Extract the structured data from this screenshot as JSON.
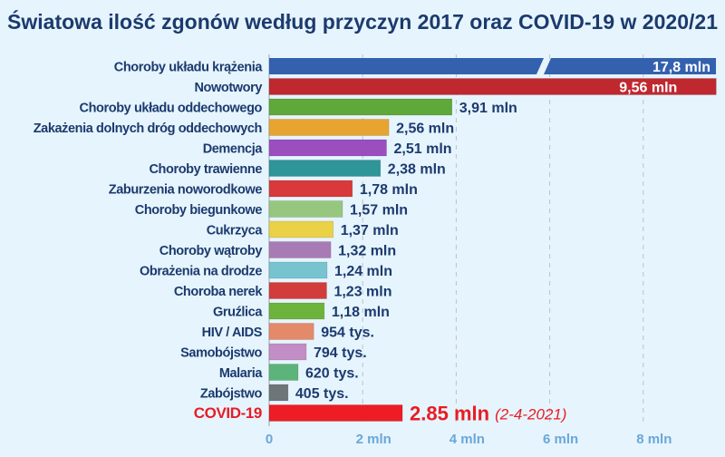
{
  "chart_data": {
    "type": "bar",
    "orientation": "horizontal",
    "title": "Światowa ilość zgonów według przyczyn 2017 oraz COVID-19 w 2020/21",
    "categories": [
      "Choroby układu krążenia",
      "Nowotwory",
      "Choroby układu oddechowego",
      "Zakażenia dolnych dróg oddechowych",
      "Demencja",
      "Choroby trawienne",
      "Zaburzenia noworodkowe",
      "Choroby biegunkowe",
      "Cukrzyca",
      "Choroby wątroby",
      "Obrażenia na drodze",
      "Choroba nerek",
      "Gruźlica",
      "HIV / AIDS",
      "Samobójstwo",
      "Malaria",
      "Zabójstwo",
      "COVID-19"
    ],
    "values": [
      17.8,
      9.56,
      3.91,
      2.56,
      2.51,
      2.38,
      1.78,
      1.57,
      1.37,
      1.32,
      1.24,
      1.23,
      1.18,
      0.954,
      0.794,
      0.62,
      0.405,
      2.85
    ],
    "value_labels": [
      "17,8 mln",
      "9,56 mln",
      "3,91 mln",
      "2,56 mln",
      "2,51 mln",
      "2,38 mln",
      "1,78 mln",
      "1,57 mln",
      "1,37 mln",
      "1,32 mln",
      "1,24 mln",
      "1,23 mln",
      "1,18 mln",
      "954 tys.",
      "794 tys.",
      "620 tys.",
      "405 tys.",
      "2.85 mln"
    ],
    "colors": [
      "#3461ae",
      "#c0282f",
      "#5fa83a",
      "#e8a430",
      "#9b4fbf",
      "#2e9598",
      "#d8393a",
      "#97c77f",
      "#ebd146",
      "#a97bb5",
      "#77c4d0",
      "#d23c3a",
      "#6cb33b",
      "#e4896a",
      "#c38dc5",
      "#5db47a",
      "#6f767a",
      "#ee1c25"
    ],
    "annotation": "(2-4-2021)",
    "broken_axis_bar": "Choroby układu krążenia",
    "xlim": [
      0,
      9.56
    ],
    "xticks": [
      0,
      2,
      4,
      6,
      8
    ],
    "xtick_labels": [
      "0",
      "2 mln",
      "4 mln",
      "6 mln",
      "8 mln"
    ],
    "grid": "vertical dashed",
    "unit": "mln"
  }
}
